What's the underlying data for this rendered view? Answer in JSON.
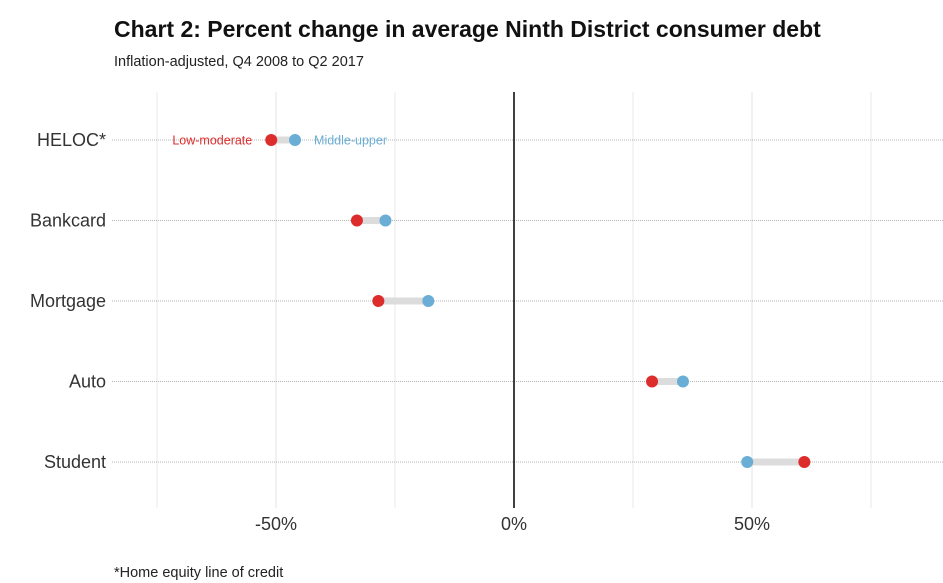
{
  "header": {
    "title": "Chart 2: Percent change in average Ninth District consumer debt",
    "subtitle": "Inflation-adjusted, Q4 2008 to Q2 2017"
  },
  "footnote": "*Home equity line of credit",
  "colors": {
    "low_moderate": "#dd2c2c",
    "middle_upper": "#6aaed6",
    "connector": "#dcdcdc",
    "zero_line": "#111111",
    "grid": "#e3e3e3"
  },
  "chart_data": {
    "type": "scatter",
    "subtype": "dumbbell",
    "title": "Chart 2: Percent change in average Ninth District consumer debt",
    "subtitle": "Inflation-adjusted, Q4 2008 to Q2 2017",
    "xlabel": "",
    "ylabel": "",
    "xlim": [
      -75,
      88
    ],
    "x_ticks": [
      -50,
      0,
      50
    ],
    "x_tick_labels": [
      "-50%",
      "0%",
      "50%"
    ],
    "grid": true,
    "categories": [
      "HELOC*",
      "Bankcard",
      "Mortgage",
      "Auto",
      "Student"
    ],
    "series": [
      {
        "name": "Low-moderate",
        "color": "#dd2c2c",
        "values": [
          -51,
          -33,
          -28.5,
          29,
          61
        ]
      },
      {
        "name": "Middle-upper",
        "color": "#6aaed6",
        "values": [
          -46,
          -27,
          -18,
          35.5,
          49
        ]
      }
    ],
    "annotations": [
      {
        "text": "Low-moderate",
        "series": "Low-moderate",
        "category": "HELOC*",
        "side": "left"
      },
      {
        "text": "Middle-upper",
        "series": "Middle-upper",
        "category": "HELOC*",
        "side": "right"
      }
    ]
  }
}
